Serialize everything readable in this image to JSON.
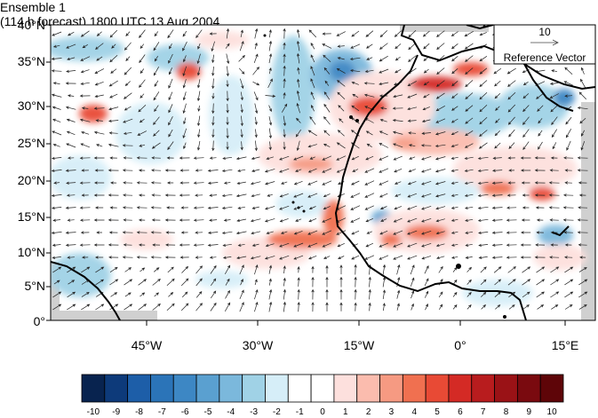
{
  "titles": {
    "left": "Ensemble 1",
    "right": "(114 h forecast) 1800 UTC 13 Aug 2004"
  },
  "axes": {
    "y_labels": [
      "40°N",
      "35°N",
      "30°N",
      "25°N",
      "20°N",
      "15°N",
      "10°N",
      "5°N",
      "0°"
    ],
    "x_labels": [
      "45°W",
      "30°W",
      "15°W",
      "0°",
      "15°E"
    ]
  },
  "reference_vector": {
    "value": "10",
    "label": "Reference Vector"
  },
  "colorbar": {
    "labels": [
      "-10",
      "-9",
      "-8",
      "-7",
      "-6",
      "-5",
      "-4",
      "-3",
      "-2",
      "-1",
      "0",
      "1",
      "2",
      "3",
      "4",
      "5",
      "6",
      "7",
      "8",
      "9",
      "10"
    ],
    "colors": [
      "#08234f",
      "#0d3a7a",
      "#1d5ea8",
      "#2b74b8",
      "#3d87c4",
      "#5aa0d0",
      "#7bb8dc",
      "#a0d2e6",
      "#d6eef8",
      "#ffffff",
      "#ffffff",
      "#fde0dd",
      "#fbbcae",
      "#f69a82",
      "#f07050",
      "#e84a35",
      "#d42a25",
      "#b81c1e",
      "#9a1216",
      "#7a0a0f",
      "#5e0508"
    ]
  },
  "map": {
    "lon_range": [
      -60,
      20
    ],
    "lat_range": [
      0,
      40
    ],
    "ocean_color": "#ffffff",
    "land_mask_color": "#d0d0d0"
  }
}
